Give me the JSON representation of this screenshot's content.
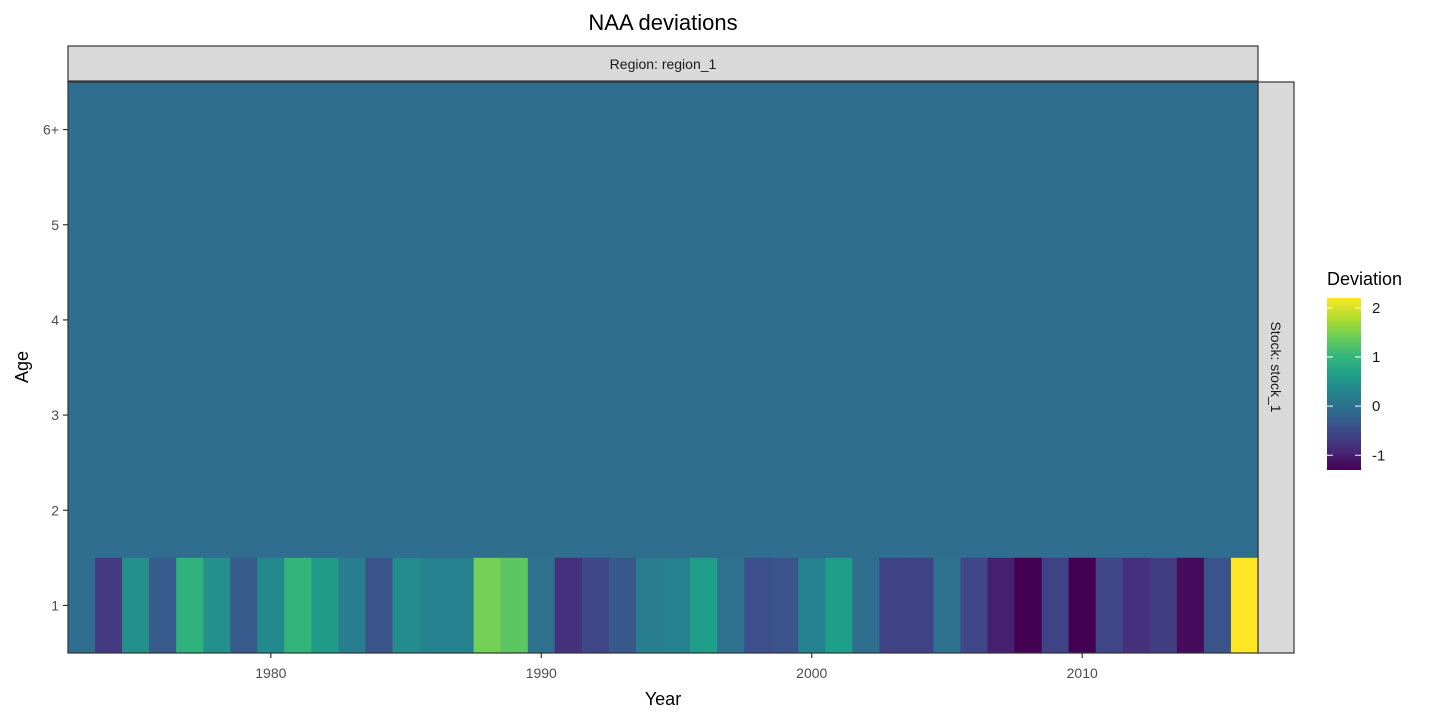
{
  "chart_data": {
    "type": "heatmap",
    "title": "NAA deviations",
    "xlabel": "Year",
    "ylabel": "Age",
    "facet_col": "Region: region_1",
    "facet_row": "Stock: stock_1",
    "x_ticks": [
      "1980",
      "1990",
      "2000",
      "2010"
    ],
    "x_tick_values": [
      1980,
      1990,
      2000,
      2010
    ],
    "y_categories": [
      "1",
      "2",
      "3",
      "4",
      "5",
      "6+"
    ],
    "xlim": [
      1972.5,
      2016.5
    ],
    "legend": {
      "title": "Deviation",
      "position": "right",
      "range": [
        -1.3,
        2.2
      ],
      "ticks": [
        2,
        1,
        0,
        -1
      ],
      "tick_labels": [
        "2",
        "1",
        "0",
        "-1"
      ],
      "palette": [
        "#440154",
        "#482878",
        "#3E4989",
        "#31688E",
        "#26828E",
        "#1F9E89",
        "#35B779",
        "#6ECE58",
        "#B5DE2B",
        "#FDE725"
      ]
    },
    "background_deviation": -0.05,
    "years": [
      1974,
      1975,
      1976,
      1977,
      1978,
      1979,
      1980,
      1981,
      1982,
      1983,
      1984,
      1985,
      1986,
      1987,
      1988,
      1989,
      1990,
      1991,
      1992,
      1993,
      1994,
      1995,
      1996,
      1997,
      1998,
      1999,
      2000,
      2001,
      2002,
      2003,
      2004,
      2005,
      2006,
      2007,
      2008,
      2009,
      2010,
      2011,
      2012,
      2013,
      2014,
      2015,
      2016
    ],
    "age1_values": [
      -0.7,
      0.45,
      -0.3,
      0.95,
      0.45,
      -0.3,
      0.35,
      1.0,
      0.6,
      0.2,
      -0.4,
      0.4,
      0.25,
      0.25,
      1.45,
      1.3,
      0.0,
      -0.8,
      -0.55,
      -0.35,
      0.2,
      0.25,
      0.65,
      0.0,
      -0.45,
      -0.4,
      0.25,
      0.65,
      -0.05,
      -0.6,
      -0.6,
      0.0,
      -0.55,
      -1.0,
      -1.3,
      -0.6,
      -1.3,
      -0.55,
      -0.8,
      -0.65,
      -1.2,
      -0.4,
      2.2
    ]
  }
}
